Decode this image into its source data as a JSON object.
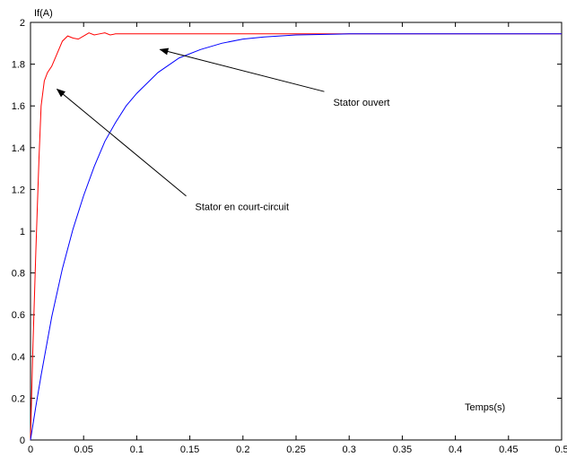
{
  "chart_data": {
    "type": "line",
    "title": "",
    "xlabel": "Temps(s)",
    "ylabel": "If(A)",
    "xlim": [
      0,
      0.5
    ],
    "ylim": [
      0,
      2
    ],
    "x_ticks": [
      "0",
      "0.05",
      "0.1",
      "0.15",
      "0.2",
      "0.25",
      "0.3",
      "0.35",
      "0.4",
      "0.45",
      "0.5"
    ],
    "y_ticks": [
      "0",
      "0.2",
      "0.4",
      "0.6",
      "0.8",
      "1",
      "1.2",
      "1.4",
      "1.6",
      "1.8",
      "2"
    ],
    "grid": false,
    "series": [
      {
        "color": "#ff0000",
        "x": [
          0,
          0.002,
          0.005,
          0.008,
          0.01,
          0.013,
          0.016,
          0.02,
          0.025,
          0.03,
          0.035,
          0.04,
          0.045,
          0.05,
          0.055,
          0.06,
          0.065,
          0.07,
          0.075,
          0.08,
          0.085,
          0.09,
          0.1,
          0.15,
          0.2,
          0.3,
          0.4,
          0.5
        ],
        "y": [
          0,
          0.4,
          0.9,
          1.35,
          1.6,
          1.72,
          1.76,
          1.79,
          1.85,
          1.91,
          1.935,
          1.925,
          1.92,
          1.935,
          1.95,
          1.94,
          1.945,
          1.95,
          1.94,
          1.945,
          1.945,
          1.945,
          1.945,
          1.945,
          1.945,
          1.945,
          1.945,
          1.945
        ]
      },
      {
        "color": "#0000ff",
        "x": [
          0,
          0.005,
          0.01,
          0.02,
          0.03,
          0.04,
          0.05,
          0.06,
          0.07,
          0.08,
          0.09,
          0.1,
          0.12,
          0.14,
          0.16,
          0.18,
          0.2,
          0.22,
          0.25,
          0.3,
          0.35,
          0.4,
          0.45,
          0.5
        ],
        "y": [
          0,
          0.16,
          0.31,
          0.59,
          0.82,
          1.01,
          1.17,
          1.31,
          1.43,
          1.52,
          1.6,
          1.66,
          1.76,
          1.83,
          1.87,
          1.9,
          1.92,
          1.93,
          1.94,
          1.945,
          1.945,
          1.945,
          1.945,
          1.945
        ]
      }
    ],
    "annotations": [
      {
        "text": "Stator ouvert",
        "text_at": [
          0.285,
          1.6
        ],
        "arrow_to": [
          0.122,
          1.87
        ]
      },
      {
        "text": "Stator en court-circuit",
        "text_at": [
          0.155,
          1.1
        ],
        "arrow_to": [
          0.025,
          1.68
        ]
      }
    ]
  }
}
